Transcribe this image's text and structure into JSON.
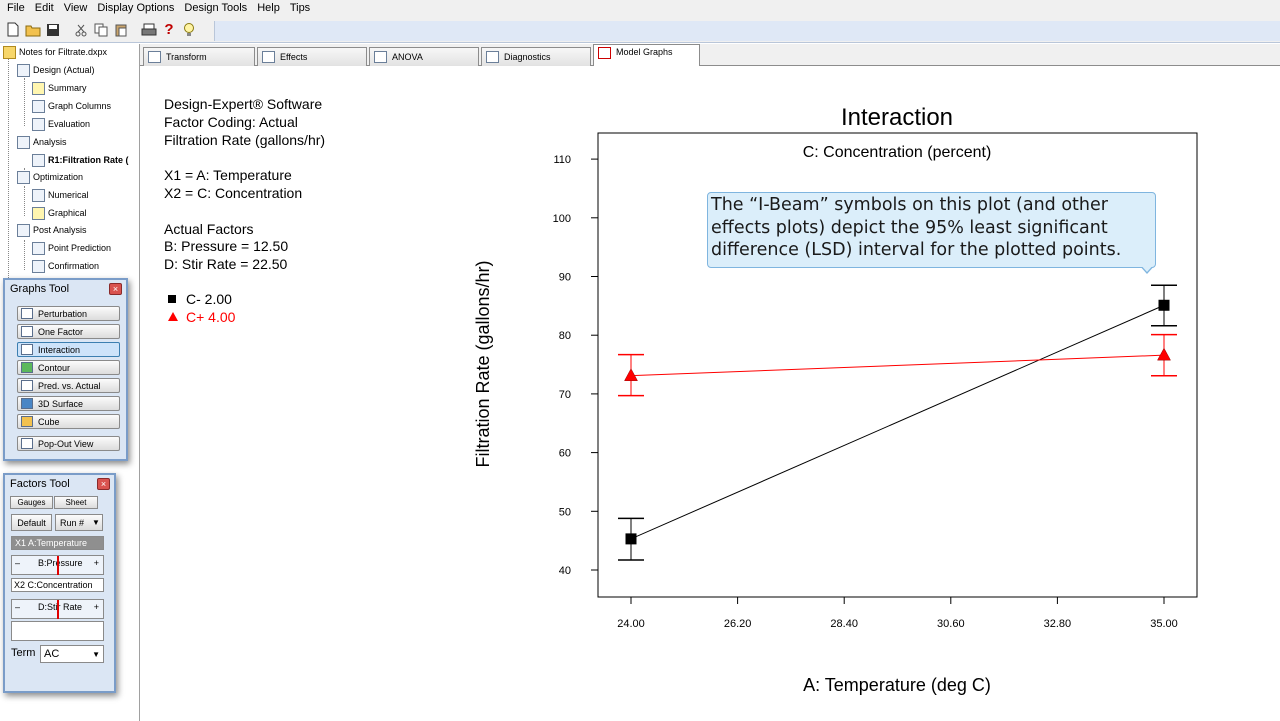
{
  "menubar": {
    "items": [
      "File",
      "Edit",
      "View",
      "Display Options",
      "Design Tools",
      "Help",
      "Tips"
    ]
  },
  "toolbar": {
    "icons": [
      "new-file-icon",
      "open-folder-icon",
      "save-icon",
      "cut-icon",
      "copy-icon",
      "paste-icon",
      "print-icon",
      "help-icon",
      "tip-icon"
    ],
    "help_glyph": "?"
  },
  "tree": {
    "root": "Notes for Filtrate.dxpx",
    "items": [
      {
        "label": "Design (Actual)"
      },
      {
        "label": "Summary"
      },
      {
        "label": "Graph Columns"
      },
      {
        "label": "Evaluation"
      },
      {
        "label": "Analysis"
      },
      {
        "label": "R1:Filtration Rate ("
      },
      {
        "label": "Optimization"
      },
      {
        "label": "Numerical"
      },
      {
        "label": "Graphical"
      },
      {
        "label": "Post Analysis"
      },
      {
        "label": "Point Prediction"
      },
      {
        "label": "Confirmation"
      }
    ]
  },
  "graphs_tool": {
    "title": "Graphs Tool",
    "close": "×",
    "buttons": [
      "Perturbation",
      "One Factor",
      "Interaction",
      "Contour",
      "Pred. vs. Actual",
      "3D Surface",
      "Cube"
    ],
    "popout": "Pop-Out View"
  },
  "factors_tool": {
    "title": "Factors Tool",
    "close": "×",
    "tabs": [
      "Gauges",
      "Sheet"
    ],
    "default_btn": "Default",
    "run_select": "Run #",
    "x1": "X1 A:Temperature",
    "pressure": "B:Pressure",
    "x2": "X2 C:Concentration",
    "stir": "D:Stir Rate",
    "minus": "–",
    "plus": "+",
    "term_label": "Term",
    "term_value": "AC"
  },
  "tabs": [
    "Transform",
    "Effects",
    "ANOVA",
    "Diagnostics",
    "Model Graphs"
  ],
  "info": {
    "line1": "Design-Expert® Software",
    "line2": "Factor Coding: Actual",
    "line3": "Filtration Rate (gallons/hr)",
    "x1": "X1 = A: Temperature",
    "x2": "X2 = C: Concentration",
    "actual_header": "Actual Factors",
    "b": "B: Pressure = 12.50",
    "d": "D: Stir Rate = 22.50",
    "legend_minus": "C- 2.00",
    "legend_plus": "C+ 4.00"
  },
  "callout": {
    "text": "The “I-Beam” symbols on this plot (and other effects plots) depict the 95% least significant difference (LSD) interval for the plotted points."
  },
  "colors": {
    "series_minus": "#000000",
    "series_plus": "#ff0000",
    "callout_bg": "#dbeefa",
    "tab_active": "#ffffff"
  },
  "chart_data": {
    "type": "line",
    "title": "Interaction",
    "subtitle": "C: Concentration (percent)",
    "xlabel": "A: Temperature (deg C)",
    "ylabel": "Filtration Rate (gallons/hr)",
    "xlim": [
      24.0,
      35.0
    ],
    "ylim": [
      36.5,
      114.5
    ],
    "xticks": [
      "24.00",
      "26.20",
      "28.40",
      "30.60",
      "32.80",
      "35.00"
    ],
    "yticks": [
      "40",
      "50",
      "60",
      "70",
      "80",
      "90",
      "100",
      "110"
    ],
    "grid": false,
    "series": [
      {
        "name": "C- 2.00",
        "x": [
          24.0,
          35.0
        ],
        "values": [
          45.3,
          85.1
        ],
        "lsd_low": [
          41.7,
          81.6
        ],
        "lsd_high": [
          48.8,
          88.5
        ],
        "marker": "square"
      },
      {
        "name": "C+ 4.00",
        "x": [
          24.0,
          35.0
        ],
        "values": [
          73.1,
          76.6
        ],
        "lsd_low": [
          69.7,
          73.1
        ],
        "lsd_high": [
          76.7,
          80.1
        ],
        "marker": "triangle"
      }
    ]
  }
}
